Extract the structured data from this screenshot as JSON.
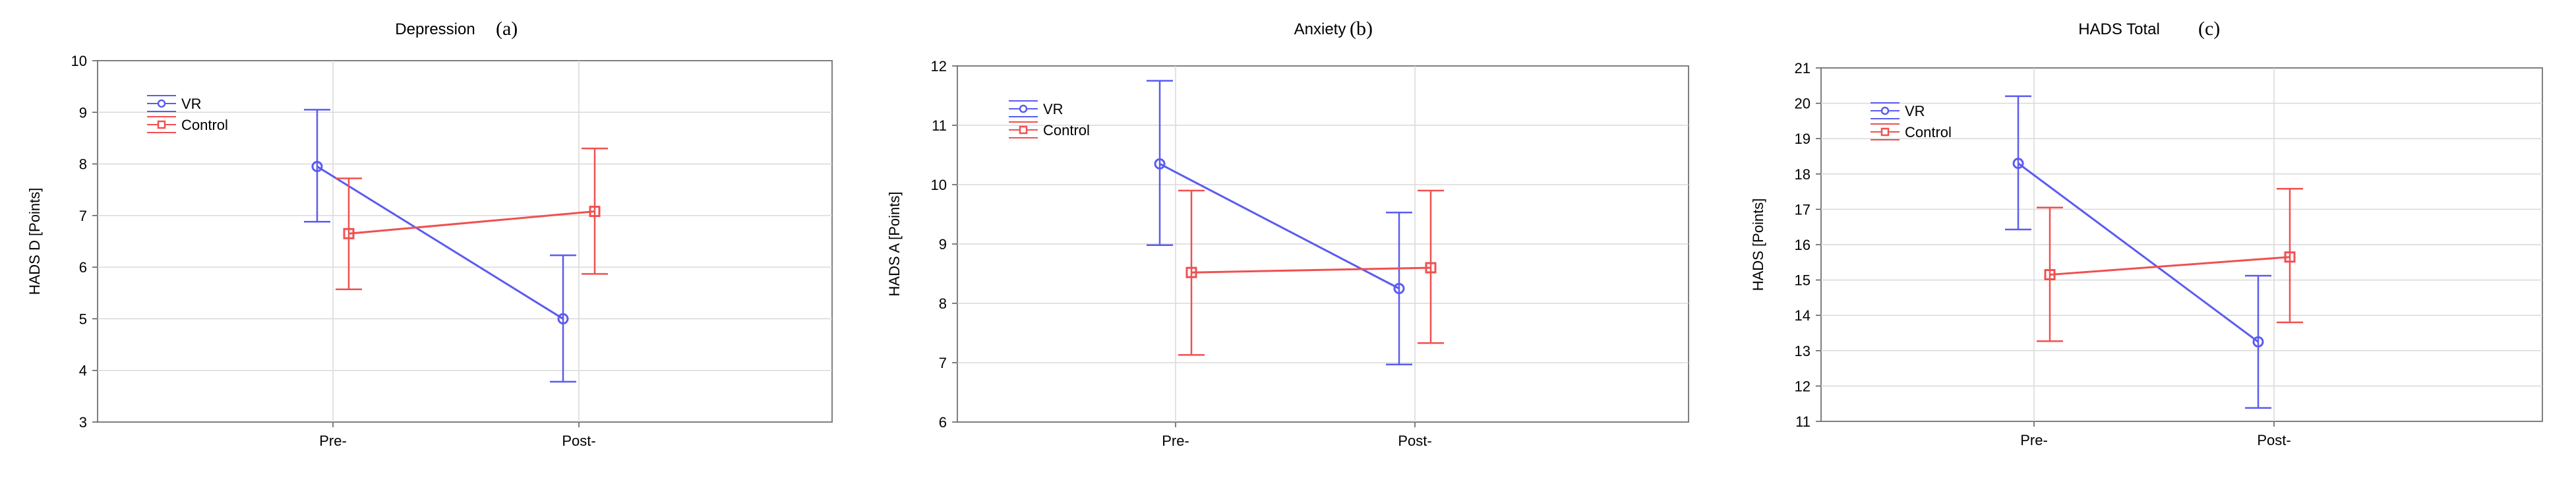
{
  "chart_data": [
    {
      "type": "line",
      "title": "Depression",
      "panel_label": "(a)",
      "ylabel": "HADS D [Points]",
      "categories": [
        "Pre-",
        "Post-"
      ],
      "ylim": [
        3,
        10
      ],
      "yticks": [
        "3",
        "4",
        "5",
        "6",
        "7",
        "8",
        "9",
        "10"
      ],
      "grid": true,
      "legend_position": "top-left",
      "series": [
        {
          "name": "VR",
          "color": "#5b5bf0",
          "marker": "circle",
          "values": [
            7.95,
            5.0
          ],
          "error_low": [
            6.88,
            3.78
          ],
          "error_high": [
            9.05,
            6.23
          ]
        },
        {
          "name": "Control",
          "color": "#f05050",
          "marker": "square",
          "values": [
            6.65,
            7.08
          ],
          "error_low": [
            5.57,
            5.87
          ],
          "error_high": [
            7.72,
            8.3
          ]
        }
      ]
    },
    {
      "type": "line",
      "title": "Anxiety",
      "panel_label": "(b)",
      "ylabel": "HADS A [Points]",
      "categories": [
        "Pre-",
        "Post-"
      ],
      "ylim": [
        6,
        12
      ],
      "yticks": [
        "6",
        "7",
        "8",
        "9",
        "10",
        "11",
        "12"
      ],
      "grid": true,
      "legend_position": "top-left",
      "series": [
        {
          "name": "VR",
          "color": "#5b5bf0",
          "marker": "circle",
          "values": [
            10.35,
            8.25
          ],
          "error_low": [
            8.98,
            6.97
          ],
          "error_high": [
            11.75,
            9.53
          ]
        },
        {
          "name": "Control",
          "color": "#f05050",
          "marker": "square",
          "values": [
            8.52,
            8.6
          ],
          "error_low": [
            7.13,
            7.33
          ],
          "error_high": [
            9.9,
            9.9
          ]
        }
      ]
    },
    {
      "type": "line",
      "title": "HADS Total",
      "panel_label": "(c)",
      "ylabel": "HADS [Points]",
      "categories": [
        "Pre-",
        "Post-"
      ],
      "ylim": [
        11,
        21
      ],
      "yticks": [
        "11",
        "12",
        "13",
        "14",
        "15",
        "16",
        "17",
        "18",
        "19",
        "20",
        "21"
      ],
      "grid": true,
      "legend_position": "top-left",
      "series": [
        {
          "name": "VR",
          "color": "#5b5bf0",
          "marker": "circle",
          "values": [
            18.3,
            13.25
          ],
          "error_low": [
            16.43,
            11.38
          ],
          "error_high": [
            20.2,
            15.12
          ]
        },
        {
          "name": "Control",
          "color": "#f05050",
          "marker": "square",
          "values": [
            15.15,
            15.65
          ],
          "error_low": [
            13.27,
            13.8
          ],
          "error_high": [
            17.05,
            17.58
          ]
        }
      ]
    }
  ]
}
